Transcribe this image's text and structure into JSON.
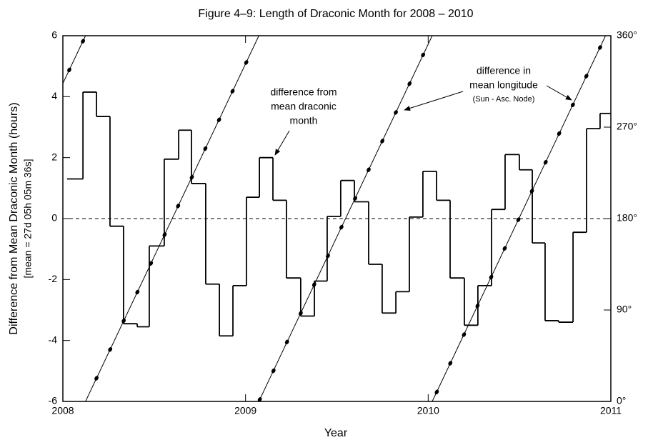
{
  "chart_data": {
    "type": "step",
    "title": "Figure 4–9: Length of Draconic Month for 2008 – 2010",
    "x_label": "Year",
    "y_label": "Difference from Mean Draconic Month (hours)",
    "y_sublabel": "[mean = 27d 05h 05m 36s]",
    "xlim": [
      2008,
      2011
    ],
    "xticks": [
      2008,
      2009,
      2010,
      2011
    ],
    "ylim": [
      -6,
      6
    ],
    "yticks": [
      -6,
      -4,
      -2,
      0,
      2,
      4,
      6
    ],
    "y2lim": [
      0,
      360
    ],
    "y2ticks": [
      {
        "value": 0,
        "label": "0°"
      },
      {
        "value": 90,
        "label": "90°"
      },
      {
        "value": 180,
        "label": "180°"
      },
      {
        "value": 270,
        "label": "270°"
      },
      {
        "value": 360,
        "label": "360°"
      }
    ],
    "hline": 0,
    "color": "#000000",
    "steps": {
      "edges": [
        2008.023,
        2008.11,
        2008.184,
        2008.258,
        2008.332,
        2008.407,
        2008.473,
        2008.555,
        2008.634,
        2008.704,
        2008.782,
        2008.857,
        2008.931,
        2009.005,
        2009.076,
        2009.15,
        2009.224,
        2009.302,
        2009.377,
        2009.447,
        2009.521,
        2009.596,
        2009.674,
        2009.748,
        2009.823,
        2009.897,
        2009.971,
        2010.046,
        2010.12,
        2010.198,
        2010.272,
        2010.347,
        2010.421,
        2010.499,
        2010.57,
        2010.64,
        2010.714,
        2010.793,
        2010.867,
        2010.941,
        2011.0
      ],
      "values": [
        1.3,
        4.15,
        3.35,
        -0.25,
        -3.45,
        -3.55,
        -0.9,
        1.95,
        2.9,
        1.15,
        -2.15,
        -3.85,
        -2.2,
        0.7,
        2.0,
        0.6,
        -1.95,
        -3.2,
        -2.05,
        0.07,
        1.25,
        0.55,
        -1.5,
        -3.1,
        -2.4,
        0.05,
        1.55,
        0.6,
        -1.95,
        -3.5,
        -2.2,
        0.3,
        2.1,
        1.6,
        -0.8,
        -3.35,
        -3.4,
        -0.45,
        2.95,
        3.45
      ]
    },
    "lines": [
      {
        "axis": "y2",
        "x": [
          2008,
          2008.124
        ],
        "values": [
          313,
          360
        ]
      },
      {
        "axis": "y2",
        "x": [
          2008.124,
          2009.073
        ],
        "values": [
          0,
          360
        ]
      },
      {
        "axis": "y2",
        "x": [
          2009.073,
          2010.022
        ],
        "values": [
          0,
          360
        ]
      },
      {
        "axis": "y2",
        "x": [
          2010.022,
          2010.971
        ],
        "values": [
          0,
          360
        ]
      }
    ],
    "dots": {
      "axis": "y2",
      "x": [
        2008.035,
        2008.11,
        2008.184,
        2008.259,
        2008.333,
        2008.408,
        2008.482,
        2008.557,
        2008.631,
        2008.706,
        2008.78,
        2008.855,
        2008.929,
        2009.004,
        2009.078,
        2009.153,
        2009.227,
        2009.302,
        2009.376,
        2009.451,
        2009.525,
        2009.6,
        2009.674,
        2009.749,
        2009.823,
        2009.898,
        2009.972,
        2010.047,
        2010.121,
        2010.196,
        2010.27,
        2010.345,
        2010.419,
        2010.494,
        2010.568,
        2010.643,
        2010.717,
        2010.792,
        2010.866,
        2010.941
      ],
      "values": [
        326.3,
        354.6,
        22.8,
        51.1,
        79.3,
        107.6,
        135.9,
        164.1,
        192.4,
        220.6,
        248.9,
        277.2,
        305.4,
        333.7,
        1.9,
        30.2,
        58.5,
        86.7,
        115.0,
        143.2,
        171.5,
        199.8,
        228.0,
        256.3,
        284.5,
        312.8,
        341.1,
        9.3,
        37.6,
        65.8,
        94.1,
        122.4,
        150.6,
        178.9,
        207.1,
        235.4,
        263.7,
        291.9,
        320.2,
        348.4
      ]
    },
    "annotations": [
      {
        "lines": [
          "difference from",
          "mean draconic",
          "month"
        ]
      },
      {
        "lines": [
          "difference in",
          "mean longitude"
        ],
        "note": "(Sun - Asc. Node)"
      }
    ]
  }
}
